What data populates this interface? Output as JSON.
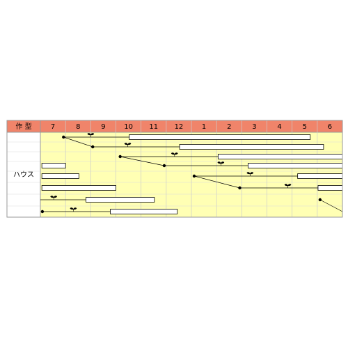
{
  "chart_data": {
    "type": "schedule",
    "header": "作 型",
    "row_label": "ハウス",
    "categories": [
      "7",
      "8",
      "9",
      "10",
      "11",
      "12",
      "1",
      "2",
      "3",
      "4",
      "5",
      "6"
    ],
    "header_color": "#f0846a",
    "body_color": "#ffffb4",
    "lanes": [
      {
        "sow": 0.92,
        "plant": 2.0,
        "harvest": [
          3.53,
          10.72
        ]
      },
      {
        "sow": 2.08,
        "plant": 3.47,
        "harvest": [
          5.53,
          11.25
        ]
      },
      {
        "sow": 3.17,
        "plant": 5.33,
        "harvest": [
          7.06,
          12
        ]
      },
      {
        "sow": 4.92,
        "plant": 7.17,
        "harvest": [
          8.25,
          12
        ],
        "harvest_prev": [
          0.06,
          1.0
        ]
      },
      {
        "sow": 6.11,
        "plant": 8.33,
        "harvest": [
          10.22,
          12
        ],
        "harvest_prev": [
          0.06,
          1.53
        ]
      },
      {
        "sow": 7.92,
        "plant": 9.83,
        "harvest": [
          11.03,
          12
        ],
        "harvest_prev": [
          0.06,
          3.0
        ]
      },
      {
        "sow": 11.11,
        "plant": 0.53,
        "harvest": [
          1.81,
          4.53
        ]
      },
      {
        "sow": 0.08,
        "plant": 1.31,
        "harvest": [
          2.78,
          5.44
        ]
      }
    ],
    "links": [
      [
        0,
        1
      ],
      [
        2,
        3
      ],
      [
        4,
        5
      ],
      [
        6,
        7
      ]
    ]
  }
}
